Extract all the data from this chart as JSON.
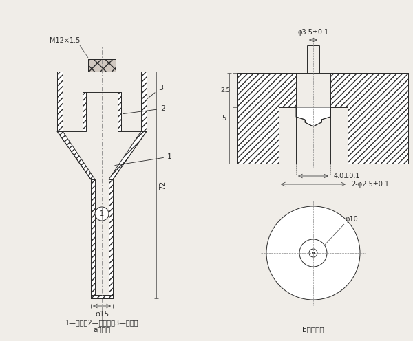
{
  "bg_color": "#f0ede8",
  "line_color": "#2a2a2a",
  "title_a": "a）噴嘴",
  "title_b": "b）噴端芯",
  "label_bottom": "1—基座；2—噴端芯；3—噴端程",
  "dim_M12": "M12×1.5",
  "dim_phi15": "φ15",
  "dim_72": "72",
  "dim_phi35": "φ3.5±0.1",
  "dim_40": "4.0±0.1",
  "dim_2phi25": "2-φ2.5±0.1",
  "dim_phi10": "φ10",
  "dim_5": "5",
  "dim_25": "2.5"
}
